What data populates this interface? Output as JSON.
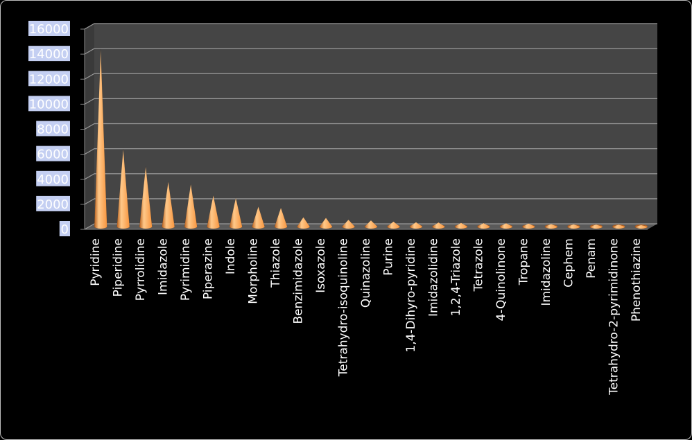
{
  "chart_data": {
    "type": "bar",
    "bar_shape": "cone-3d",
    "title": "",
    "xlabel": "",
    "ylabel": "",
    "ylim": [
      0,
      16000
    ],
    "yticks": [
      0,
      2000,
      4000,
      6000,
      8000,
      10000,
      12000,
      14000,
      16000
    ],
    "yticks_text": [
      "0",
      "2000",
      "4000",
      "6000",
      "8000",
      "10000",
      "12000",
      "14000",
      "16000"
    ],
    "grid": true,
    "legend": "none",
    "categories": [
      "Pyridine",
      "Piperidine",
      "Pyrrolidine",
      "Imidazole",
      "Pyrimidine",
      "Piperazine",
      "Indole",
      "Morpholine",
      "Thiazole",
      "Benzimidazole",
      "Isoxazole",
      "Tetrahydro-isoquinoline",
      "Quinazoline",
      "Purine",
      "1,4-Dihyro-pyridine",
      "Imidazolidine",
      "1,2,4-Triazole",
      "Tetrazole",
      "4-Quinolinone",
      "Tropane",
      "Imidazoline",
      "Cephem",
      "Penam",
      "Tetrahydro-2-pyrimidinone",
      "Phenothiazine"
    ],
    "values": [
      14200,
      6200,
      4800,
      3600,
      3400,
      2500,
      2300,
      1600,
      1500,
      750,
      700,
      550,
      500,
      400,
      350,
      330,
      300,
      280,
      270,
      250,
      200,
      180,
      160,
      150,
      120
    ],
    "colors": {
      "background": "#000000",
      "plot_wall": "#454545",
      "plot_floor": "#5a5a5a",
      "gridline": "#9a9a9a",
      "bar_light": "#ffc98a",
      "bar_mid": "#f7953f",
      "bar_dark": "#b85f1c",
      "tick_label_bg": "#c4cff2",
      "text": "#ffffff"
    }
  }
}
